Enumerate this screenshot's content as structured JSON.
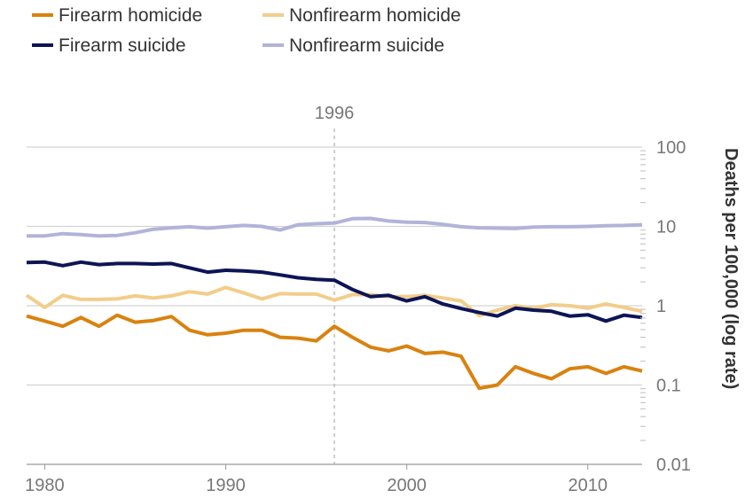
{
  "chart_data": {
    "type": "line",
    "ylabel": "Deaths per 100,000 (log rate)",
    "y_scale": "log",
    "ylim": [
      0.01,
      100
    ],
    "xlim": [
      1979,
      2013
    ],
    "grid": true,
    "legend_position": "top-left",
    "x_ticks": [
      "1980",
      "1990",
      "2000",
      "2010"
    ],
    "y_ticks": [
      "100",
      "10",
      "1",
      "0.1",
      "0.01"
    ],
    "annotation": {
      "label": "1996",
      "x": 1996
    },
    "x": [
      1979,
      1980,
      1981,
      1982,
      1983,
      1984,
      1985,
      1986,
      1987,
      1988,
      1989,
      1990,
      1991,
      1992,
      1993,
      1994,
      1995,
      1996,
      1997,
      1998,
      1999,
      2000,
      2001,
      2002,
      2003,
      2004,
      2005,
      2006,
      2007,
      2008,
      2009,
      2010,
      2011,
      2012,
      2013
    ],
    "series": [
      {
        "name": "Firearm homicide",
        "color": "#d9820f",
        "values": [
          0.74,
          0.64,
          0.55,
          0.71,
          0.55,
          0.76,
          0.62,
          0.65,
          0.73,
          0.49,
          0.43,
          0.45,
          0.49,
          0.49,
          0.4,
          0.39,
          0.36,
          0.55,
          0.4,
          0.3,
          0.27,
          0.31,
          0.25,
          0.26,
          0.23,
          0.091,
          0.1,
          0.17,
          0.14,
          0.12,
          0.16,
          0.17,
          0.14,
          0.17,
          0.15
        ]
      },
      {
        "name": "Nonfirearm homicide",
        "color": "#f2cd8a",
        "values": [
          1.35,
          0.95,
          1.35,
          1.2,
          1.2,
          1.22,
          1.33,
          1.25,
          1.33,
          1.5,
          1.4,
          1.7,
          1.45,
          1.22,
          1.42,
          1.4,
          1.4,
          1.18,
          1.38,
          1.38,
          1.3,
          1.3,
          1.35,
          1.25,
          1.15,
          0.75,
          0.88,
          1.0,
          0.93,
          1.03,
          1.0,
          0.93,
          1.05,
          0.95,
          0.85
        ]
      },
      {
        "name": "Firearm suicide",
        "color": "#0d1456",
        "values": [
          3.5,
          3.55,
          3.2,
          3.55,
          3.3,
          3.4,
          3.4,
          3.35,
          3.4,
          3.0,
          2.65,
          2.8,
          2.75,
          2.65,
          2.45,
          2.25,
          2.15,
          2.1,
          1.6,
          1.3,
          1.35,
          1.15,
          1.3,
          1.05,
          0.92,
          0.82,
          0.74,
          0.93,
          0.88,
          0.85,
          0.74,
          0.77,
          0.64,
          0.76,
          0.71
        ]
      },
      {
        "name": "Nonfirearm suicide",
        "color": "#b2b3d9",
        "values": [
          7.6,
          7.6,
          8.1,
          7.9,
          7.6,
          7.7,
          8.3,
          9.2,
          9.6,
          9.9,
          9.5,
          9.9,
          10.3,
          10.0,
          9.0,
          10.5,
          10.8,
          11.0,
          12.5,
          12.6,
          11.7,
          11.3,
          11.2,
          10.6,
          9.9,
          9.6,
          9.5,
          9.4,
          9.8,
          9.9,
          9.9,
          10.0,
          10.2,
          10.3,
          10.5
        ]
      }
    ]
  }
}
